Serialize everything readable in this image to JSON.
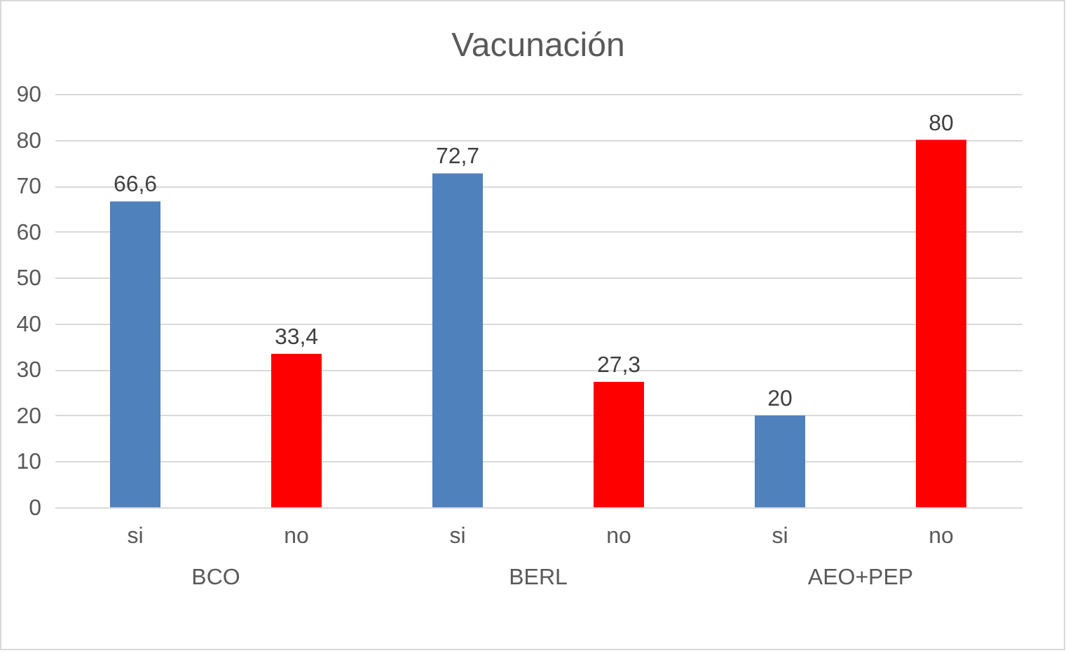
{
  "chart_data": {
    "type": "bar",
    "title": "Vacunación",
    "categories": [
      "si",
      "no",
      "si",
      "no",
      "si",
      "no"
    ],
    "values": [
      66.6,
      33.4,
      72.7,
      27.3,
      20,
      80
    ],
    "colors": [
      "#4f81bd",
      "#ff0000",
      "#4f81bd",
      "#ff0000",
      "#4f81bd",
      "#ff0000"
    ],
    "value_labels": [
      "66,6",
      "33,4",
      "72,7",
      "27,3",
      "20",
      "80"
    ],
    "annotations": [
      "BCO",
      "BERL",
      "AEO+PEP"
    ],
    "ylim": [
      0,
      90
    ],
    "yticks": [
      0,
      10,
      20,
      30,
      40,
      50,
      60,
      70,
      80,
      90
    ],
    "grid": "y"
  }
}
